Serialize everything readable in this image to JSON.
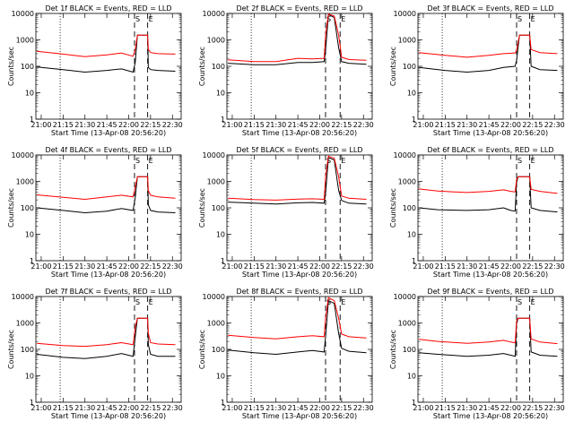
{
  "figure": {
    "xlabel": "Start Time (13-Apr-08 20:56:20)",
    "ylabel": "Counts/sec",
    "x_ticks": [
      "21:00",
      "21:15",
      "21:30",
      "21:45",
      "22:00",
      "22:15",
      "22:30"
    ],
    "y_ticks": [
      "1",
      "10",
      "100",
      "1000",
      "10000"
    ],
    "markers": {
      "start": "S",
      "end": "E"
    },
    "colors": {
      "events": "#000000",
      "lld": "#ff0000",
      "marker": "#000000"
    }
  },
  "chart_data": [
    {
      "type": "line",
      "title": "Det 1f BLACK = Events, RED = LLD",
      "panel_id": "det-1f",
      "xlim": [
        "20:56:20",
        "22:36:00"
      ],
      "ylim": [
        1,
        10000
      ],
      "y_scale": "log",
      "dotted_line_x": "21:13",
      "dashed_lines_x": [
        "22:04",
        "22:13"
      ],
      "series": [
        {
          "name": "Events",
          "color": "#000000",
          "x": [
            "20:57",
            "21:15",
            "21:30",
            "21:45",
            "21:55",
            "22:03",
            "22:04:30",
            "22:06",
            "22:13",
            "22:13:30",
            "22:15",
            "22:20",
            "22:32"
          ],
          "values": [
            95,
            75,
            60,
            70,
            80,
            60,
            140,
            1500,
            1500,
            90,
            75,
            70,
            65
          ]
        },
        {
          "name": "LLD",
          "color": "#ff0000",
          "x": [
            "20:57",
            "21:15",
            "21:30",
            "21:45",
            "21:55",
            "22:03",
            "22:04:30",
            "22:06",
            "22:13",
            "22:13:30",
            "22:15",
            "22:20",
            "22:32"
          ],
          "values": [
            370,
            290,
            230,
            270,
            320,
            240,
            420,
            1500,
            1500,
            430,
            330,
            300,
            290
          ]
        }
      ]
    },
    {
      "type": "line",
      "title": "Det 2f BLACK = Events, RED = LLD",
      "panel_id": "det-2f",
      "xlim": [
        "20:56:20",
        "22:36:00"
      ],
      "ylim": [
        1,
        10000
      ],
      "y_scale": "log",
      "dotted_line_x": "21:13",
      "dashed_lines_x": [
        "22:04",
        "22:14"
      ],
      "series": [
        {
          "name": "Events",
          "color": "#000000",
          "x": [
            "20:57",
            "21:15",
            "21:30",
            "21:45",
            "21:55",
            "22:03",
            "22:04",
            "22:06",
            "22:10",
            "22:13",
            "22:15",
            "22:20",
            "22:32"
          ],
          "values": [
            130,
            115,
            115,
            140,
            140,
            150,
            400,
            9000,
            7000,
            500,
            150,
            130,
            120
          ]
        },
        {
          "name": "LLD",
          "color": "#ff0000",
          "x": [
            "20:57",
            "21:15",
            "21:30",
            "21:45",
            "21:55",
            "22:03",
            "22:04",
            "22:06",
            "22:10",
            "22:13",
            "22:15",
            "22:20",
            "22:32"
          ],
          "values": [
            175,
            150,
            150,
            200,
            190,
            200,
            1500,
            9500,
            8000,
            1500,
            220,
            180,
            170
          ]
        }
      ]
    },
    {
      "type": "line",
      "title": "Det 3f BLACK = Events, RED = LLD",
      "panel_id": "det-3f",
      "xlim": [
        "20:56:20",
        "22:36:00"
      ],
      "ylim": [
        1,
        10000
      ],
      "y_scale": "log",
      "dotted_line_x": "21:13",
      "dashed_lines_x": [
        "22:04",
        "22:13"
      ],
      "series": [
        {
          "name": "Events",
          "color": "#000000",
          "x": [
            "20:57",
            "21:15",
            "21:30",
            "21:45",
            "21:55",
            "22:03",
            "22:04",
            "22:06",
            "22:13",
            "22:14",
            "22:20",
            "22:32"
          ],
          "values": [
            90,
            70,
            60,
            70,
            90,
            100,
            170,
            1500,
            1500,
            100,
            75,
            70
          ]
        },
        {
          "name": "LLD",
          "color": "#ff0000",
          "x": [
            "20:57",
            "21:15",
            "21:30",
            "21:45",
            "21:55",
            "22:03",
            "22:04",
            "22:06",
            "22:13",
            "22:14",
            "22:20",
            "22:32"
          ],
          "values": [
            330,
            260,
            220,
            260,
            300,
            320,
            400,
            1500,
            1500,
            430,
            330,
            300
          ]
        }
      ]
    },
    {
      "type": "line",
      "title": "Det 4f BLACK = Events, RED = LLD",
      "panel_id": "det-4f",
      "xlim": [
        "20:56:20",
        "22:36:00"
      ],
      "ylim": [
        1,
        10000
      ],
      "y_scale": "log",
      "dotted_line_x": "21:13",
      "dashed_lines_x": [
        "22:04",
        "22:13"
      ],
      "series": [
        {
          "name": "Events",
          "color": "#000000",
          "x": [
            "20:57",
            "21:15",
            "21:30",
            "21:45",
            "21:55",
            "22:03",
            "22:04:30",
            "22:06",
            "22:13",
            "22:13:30",
            "22:15",
            "22:20",
            "22:32"
          ],
          "values": [
            100,
            80,
            65,
            75,
            95,
            80,
            250,
            1500,
            1500,
            130,
            80,
            70,
            65
          ]
        },
        {
          "name": "LLD",
          "color": "#ff0000",
          "x": [
            "20:57",
            "21:15",
            "21:30",
            "21:45",
            "21:55",
            "22:03",
            "22:04:30",
            "22:06",
            "22:13",
            "22:13:30",
            "22:15",
            "22:20",
            "22:32"
          ],
          "values": [
            310,
            250,
            210,
            260,
            300,
            260,
            600,
            1500,
            1500,
            450,
            300,
            260,
            230
          ]
        }
      ]
    },
    {
      "type": "line",
      "title": "Det 5f BLACK = Events, RED = LLD",
      "panel_id": "det-5f",
      "xlim": [
        "20:56:20",
        "22:36:00"
      ],
      "ylim": [
        1,
        10000
      ],
      "y_scale": "log",
      "dotted_line_x": "21:13",
      "dashed_lines_x": [
        "22:04",
        "22:14"
      ],
      "series": [
        {
          "name": "Events",
          "color": "#000000",
          "x": [
            "20:57",
            "21:15",
            "21:30",
            "21:45",
            "21:55",
            "22:03",
            "22:04",
            "22:06",
            "22:10",
            "22:13",
            "22:15",
            "22:20",
            "22:32"
          ],
          "values": [
            165,
            150,
            140,
            155,
            160,
            150,
            350,
            8000,
            6500,
            450,
            190,
            150,
            140
          ]
        },
        {
          "name": "LLD",
          "color": "#ff0000",
          "x": [
            "20:57",
            "21:15",
            "21:30",
            "21:45",
            "21:55",
            "22:03",
            "22:04",
            "22:06",
            "22:10",
            "22:13",
            "22:15",
            "22:20",
            "22:32"
          ],
          "values": [
            230,
            205,
            195,
            215,
            220,
            210,
            1500,
            9000,
            7500,
            1500,
            280,
            230,
            210
          ]
        }
      ]
    },
    {
      "type": "line",
      "title": "Det 6f BLACK = Events, RED = LLD",
      "panel_id": "det-6f",
      "xlim": [
        "20:56:20",
        "22:36:00"
      ],
      "ylim": [
        1,
        10000
      ],
      "y_scale": "log",
      "dotted_line_x": "21:13",
      "dashed_lines_x": [
        "22:04",
        "22:13"
      ],
      "series": [
        {
          "name": "Events",
          "color": "#000000",
          "x": [
            "20:57",
            "21:10",
            "21:30",
            "21:45",
            "21:55",
            "22:00",
            "22:03",
            "22:04",
            "22:05",
            "22:13",
            "22:14",
            "22:20",
            "22:32"
          ],
          "values": [
            100,
            85,
            80,
            85,
            100,
            80,
            75,
            900,
            1500,
            1500,
            100,
            80,
            70
          ]
        },
        {
          "name": "LLD",
          "color": "#ff0000",
          "x": [
            "20:57",
            "21:10",
            "21:30",
            "21:45",
            "21:55",
            "22:00",
            "22:03",
            "22:04",
            "22:05",
            "22:13",
            "22:14",
            "22:20",
            "22:32"
          ],
          "values": [
            520,
            430,
            380,
            420,
            480,
            420,
            400,
            1200,
            1500,
            1500,
            500,
            420,
            350
          ]
        }
      ]
    },
    {
      "type": "line",
      "title": "Det 7f BLACK = Events, RED = LLD",
      "panel_id": "det-7f",
      "xlim": [
        "20:56:20",
        "22:36:00"
      ],
      "ylim": [
        1,
        10000
      ],
      "y_scale": "log",
      "dotted_line_x": "21:13",
      "dashed_lines_x": [
        "22:04",
        "22:13"
      ],
      "series": [
        {
          "name": "Events",
          "color": "#000000",
          "x": [
            "20:57",
            "21:15",
            "21:30",
            "21:45",
            "21:55",
            "22:03",
            "22:04:30",
            "22:06",
            "22:13",
            "22:13:30",
            "22:15",
            "22:20",
            "22:32"
          ],
          "values": [
            65,
            50,
            45,
            55,
            70,
            55,
            300,
            1500,
            1500,
            150,
            65,
            55,
            55
          ]
        },
        {
          "name": "LLD",
          "color": "#ff0000",
          "x": [
            "20:57",
            "21:15",
            "21:30",
            "21:45",
            "21:55",
            "22:03",
            "22:04:30",
            "22:06",
            "22:13",
            "22:13:30",
            "22:15",
            "22:20",
            "22:32"
          ],
          "values": [
            170,
            140,
            130,
            150,
            180,
            150,
            700,
            1500,
            1500,
            400,
            180,
            160,
            150
          ]
        }
      ]
    },
    {
      "type": "line",
      "title": "Det 8f BLACK = Events, RED = LLD",
      "panel_id": "det-8f",
      "xlim": [
        "20:56:20",
        "22:36:00"
      ],
      "ylim": [
        1,
        10000
      ],
      "y_scale": "log",
      "dotted_line_x": "21:13",
      "dashed_lines_x": [
        "22:04",
        "22:14"
      ],
      "series": [
        {
          "name": "Events",
          "color": "#000000",
          "x": [
            "20:57",
            "21:15",
            "21:30",
            "21:45",
            "21:55",
            "22:03",
            "22:04",
            "22:06",
            "22:10",
            "22:13",
            "22:15",
            "22:20",
            "22:32"
          ],
          "values": [
            95,
            75,
            65,
            80,
            90,
            80,
            300,
            7000,
            5500,
            400,
            110,
            85,
            75
          ]
        },
        {
          "name": "LLD",
          "color": "#ff0000",
          "x": [
            "20:57",
            "21:15",
            "21:30",
            "21:45",
            "21:55",
            "22:03",
            "22:04",
            "22:06",
            "22:10",
            "22:13",
            "22:15",
            "22:20",
            "22:32"
          ],
          "values": [
            340,
            280,
            250,
            300,
            330,
            300,
            1500,
            9000,
            7000,
            1500,
            380,
            300,
            270
          ]
        }
      ]
    },
    {
      "type": "line",
      "title": "Det 9f BLACK = Events, RED = LLD",
      "panel_id": "det-9f",
      "xlim": [
        "20:56:20",
        "22:36:00"
      ],
      "ylim": [
        1,
        10000
      ],
      "y_scale": "log",
      "dotted_line_x": "21:13",
      "dashed_lines_x": [
        "22:04",
        "22:13"
      ],
      "series": [
        {
          "name": "Events",
          "color": "#000000",
          "x": [
            "20:57",
            "21:10",
            "21:30",
            "21:45",
            "21:55",
            "22:00",
            "22:03",
            "22:04",
            "22:05",
            "22:13",
            "22:14",
            "22:20",
            "22:32"
          ],
          "values": [
            75,
            65,
            55,
            60,
            70,
            60,
            55,
            900,
            1500,
            1500,
            80,
            60,
            55
          ]
        },
        {
          "name": "LLD",
          "color": "#ff0000",
          "x": [
            "20:57",
            "21:10",
            "21:30",
            "21:45",
            "21:55",
            "22:00",
            "22:03",
            "22:04",
            "22:05",
            "22:13",
            "22:14",
            "22:20",
            "22:32"
          ],
          "values": [
            240,
            200,
            170,
            190,
            220,
            190,
            175,
            1200,
            1500,
            1500,
            250,
            190,
            165
          ]
        }
      ]
    }
  ]
}
